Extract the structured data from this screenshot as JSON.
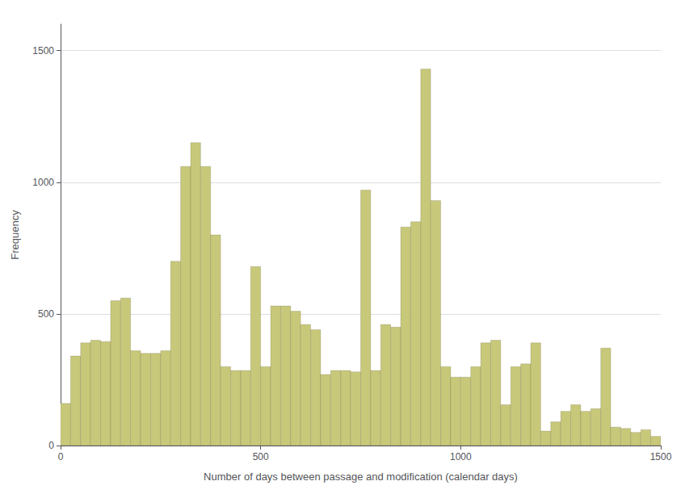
{
  "chart_data": {
    "type": "histogram",
    "xlabel": "Number of days between passage and modification (calendar days)",
    "ylabel": "Frequency",
    "bins": [
      0,
      25,
      50,
      75,
      100,
      125,
      150,
      175,
      200,
      225,
      250,
      275,
      300,
      325,
      350,
      375,
      400,
      425,
      450,
      475,
      500,
      525,
      550,
      575,
      600,
      625,
      650,
      675,
      700,
      725,
      750,
      775,
      800,
      825,
      850,
      875,
      900,
      925,
      950,
      975,
      1000,
      1025,
      1050,
      1075,
      1100,
      1125,
      1150,
      1175,
      1200,
      1225,
      1250,
      1275,
      1300,
      1325,
      1350,
      1375,
      1400,
      1425,
      1450,
      1475,
      1500
    ],
    "values": [
      160,
      340,
      390,
      400,
      395,
      550,
      560,
      360,
      350,
      350,
      360,
      700,
      1060,
      1150,
      1060,
      800,
      300,
      285,
      285,
      680,
      300,
      530,
      530,
      510,
      460,
      440,
      270,
      285,
      285,
      280,
      970,
      285,
      460,
      450,
      830,
      850,
      1430,
      930,
      300,
      260,
      260,
      300,
      390,
      400,
      155,
      300,
      310,
      390,
      55,
      90,
      130,
      155,
      130,
      140,
      370,
      70,
      65,
      50,
      60,
      35
    ],
    "color": "#c8c87a",
    "xlim": [
      0,
      1500
    ],
    "ylim": [
      0,
      1600
    ],
    "xticks": [
      0,
      500,
      1000,
      1500
    ],
    "yticks": [
      0,
      500,
      1000,
      1500
    ],
    "grid": true
  }
}
